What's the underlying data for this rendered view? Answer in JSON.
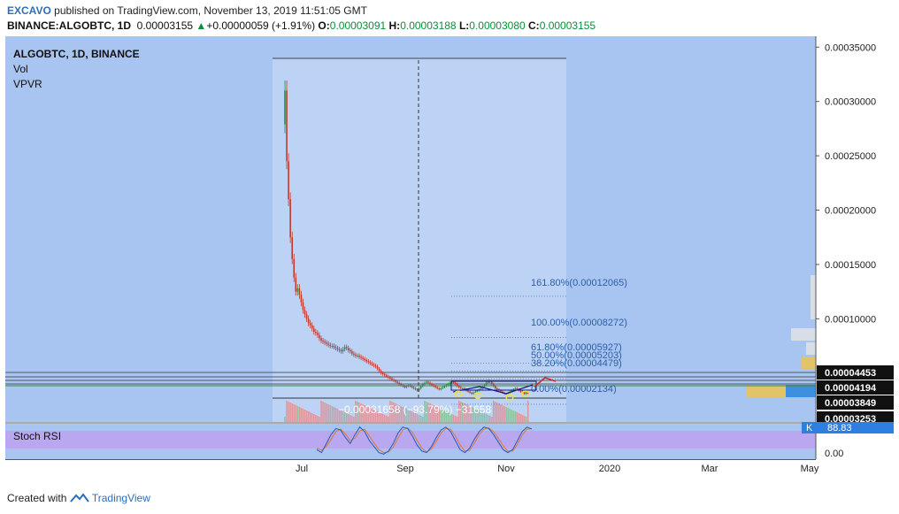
{
  "header": {
    "author": "EXCAVO",
    "published_text": "published on TradingView.com, November 13, 2019 11:51:05 GMT",
    "symbol_line": "BINANCE:ALGOBTC, 1D",
    "last_price": "0.00003155",
    "change_arrow": "▲",
    "change": "+0.00000059 (+1.91%)",
    "open_label": "O:",
    "open": "0.00003091",
    "high_label": "H:",
    "high": "0.00003188",
    "low_label": "L:",
    "low": "0.00003080",
    "close_label": "C:",
    "close": "0.00003155"
  },
  "legend": {
    "title": "ALGOBTC, 1D, BINANCE",
    "indicator1": "Vol",
    "indicator2": "VPVR",
    "stoch_label": "Stoch RSI"
  },
  "colors": {
    "main_bg": "#a8c4f0",
    "highlight_bg": "#bcd3f6",
    "volume_profile_yellow": "#e3c36a",
    "volume_profile_blue": "#3d8fe0",
    "stoch_band": "#b9a8f0",
    "up_candle": "#2e8b3c",
    "down_candle": "#c0392b",
    "axis_tag_dark": "#111111",
    "axis_tag_blue": "#2f7fe0",
    "fib_text": "#2d5fa8"
  },
  "chart_data": {
    "type": "candlestick",
    "title": "ALGOBTC, 1D, BINANCE",
    "price_axis": {
      "ticks": [
        "0.00035000",
        "0.00030000",
        "0.00025000",
        "0.00020000",
        "0.00015000",
        "0.00010000"
      ],
      "tick_values": [
        0.00035,
        0.0003,
        0.00025,
        0.0002,
        0.00015,
        0.0001
      ],
      "range": [
        5e-06,
        0.00036
      ]
    },
    "time_axis": {
      "labels": [
        "Jul",
        "Sep",
        "Nov",
        "2020",
        "Mar",
        "May"
      ]
    },
    "price_tags": [
      {
        "text": "0.00004453",
        "value": 4.453e-05,
        "style": "dark"
      },
      {
        "text": "0.00004194",
        "value": 4.194e-05,
        "style": "dark"
      },
      {
        "text": "0.00003849",
        "value": 3.849e-05,
        "style": "dark"
      },
      {
        "text": "0.00003253",
        "value": 3.253e-05,
        "style": "dark"
      }
    ],
    "close_series": [
      0.00031,
      0.000245,
      0.00021,
      0.000175,
      0.000155,
      0.000138,
      0.000125,
      0.000128,
      0.000122,
      0.000115,
      0.000108,
      0.000104,
      0.0001,
      9.6e-05,
      9.4e-05,
      9.1e-05,
      8.8e-05,
      8.7e-05,
      8.5e-05,
      8.2e-05,
      8e-05,
      7.9e-05,
      7.8e-05,
      7.7e-05,
      7.6e-05,
      7.5e-05,
      7.5e-05,
      7.4e-05,
      7.3e-05,
      7.2e-05,
      7.1e-05,
      7e-05,
      7.2e-05,
      7.4e-05,
      7.3e-05,
      7.1e-05,
      7e-05,
      6.8e-05,
      6.7e-05,
      6.6e-05,
      6.6e-05,
      6.5e-05,
      6.4e-05,
      6.3e-05,
      6.2e-05,
      6.1e-05,
      6e-05,
      5.9e-05,
      5.8e-05,
      5.7e-05,
      5.6e-05,
      5.4e-05,
      5.2e-05,
      5e-05,
      4.9e-05,
      4.8e-05,
      4.7e-05,
      4.6e-05,
      4.5e-05,
      4.4e-05,
      4.3e-05,
      4.2e-05,
      4.1e-05,
      4e-05,
      3.9e-05,
      3.8e-05,
      3.7e-05,
      3.8e-05,
      3.9e-05,
      3.8e-05,
      3.7e-05,
      3.6e-05,
      3.5e-05,
      3.4e-05,
      3.6e-05,
      3.8e-05,
      4e-05,
      4.1e-05,
      4.2e-05,
      4.1e-05,
      4e-05,
      3.9e-05,
      3.8e-05,
      3.7e-05,
      3.6e-05,
      3.5e-05,
      3.6e-05,
      3.7e-05,
      3.8e-05,
      3.9e-05,
      4e-05,
      4.1e-05,
      4.2e-05,
      4.1e-05,
      4e-05,
      3.8e-05,
      3.7e-05,
      3.6e-05,
      3.6e-05,
      3.5e-05,
      3.4e-05,
      3.3e-05,
      3.2e-05,
      3.1e-05,
      3.2e-05,
      3.3e-05,
      3.4e-05,
      3.5e-05,
      3.6e-05,
      3.7e-05,
      3.9e-05,
      4.1e-05,
      4.3e-05,
      4.2e-05,
      4e-05,
      3.8e-05,
      3.6e-05,
      3.5e-05,
      3.4e-05,
      3.3e-05,
      3.2e-05,
      3.1e-05,
      3.1e-05,
      3.2e-05,
      3.3e-05,
      3.4e-05,
      3.5e-05,
      3.6e-05,
      3.5e-05,
      3.4e-05,
      3.3e-05,
      3.2e-05,
      3.1e-05,
      3.2e-05,
      3.15e-05
    ],
    "fib_extension": [
      {
        "text": "161.80%(0.00012065)",
        "value": 0.00012065
      },
      {
        "text": "100.00%(0.00008272)",
        "value": 8.272e-05
      },
      {
        "text": "61.80%(0.00005927)",
        "value": 5.927e-05
      },
      {
        "text": "50.00%(0.00005203)",
        "value": 5.203e-05
      },
      {
        "text": "38.20%(0.00004479)",
        "value": 4.479e-05
      },
      {
        "text": "0.00%(0.00002134)",
        "value": 2.134e-05
      }
    ],
    "measure_label": "−0.00031658 (−93.79%) −31658",
    "stoch_rsi": {
      "axis_label": "0.00",
      "k_tag": "K",
      "k_value": "88.83",
      "k_series": [
        20,
        10,
        40,
        70,
        90,
        85,
        60,
        40,
        70,
        95,
        80,
        50,
        30,
        10,
        5,
        15,
        40,
        75,
        95,
        90,
        65,
        35,
        15,
        10,
        30,
        60,
        85,
        95,
        80,
        50,
        20,
        10,
        25,
        55,
        80,
        95,
        90,
        70,
        45,
        20,
        10,
        20,
        50,
        80,
        95,
        88
      ],
      "d_series": [
        25,
        18,
        30,
        55,
        80,
        88,
        72,
        50,
        58,
        82,
        88,
        65,
        42,
        20,
        10,
        12,
        28,
        58,
        85,
        92,
        78,
        50,
        25,
        12,
        22,
        48,
        75,
        90,
        88,
        65,
        35,
        15,
        18,
        42,
        70,
        88,
        92,
        80,
        58,
        32,
        15,
        15,
        38,
        68,
        88,
        90
      ]
    }
  },
  "footer": {
    "created_with": "Created with",
    "brand": "TradingView"
  }
}
